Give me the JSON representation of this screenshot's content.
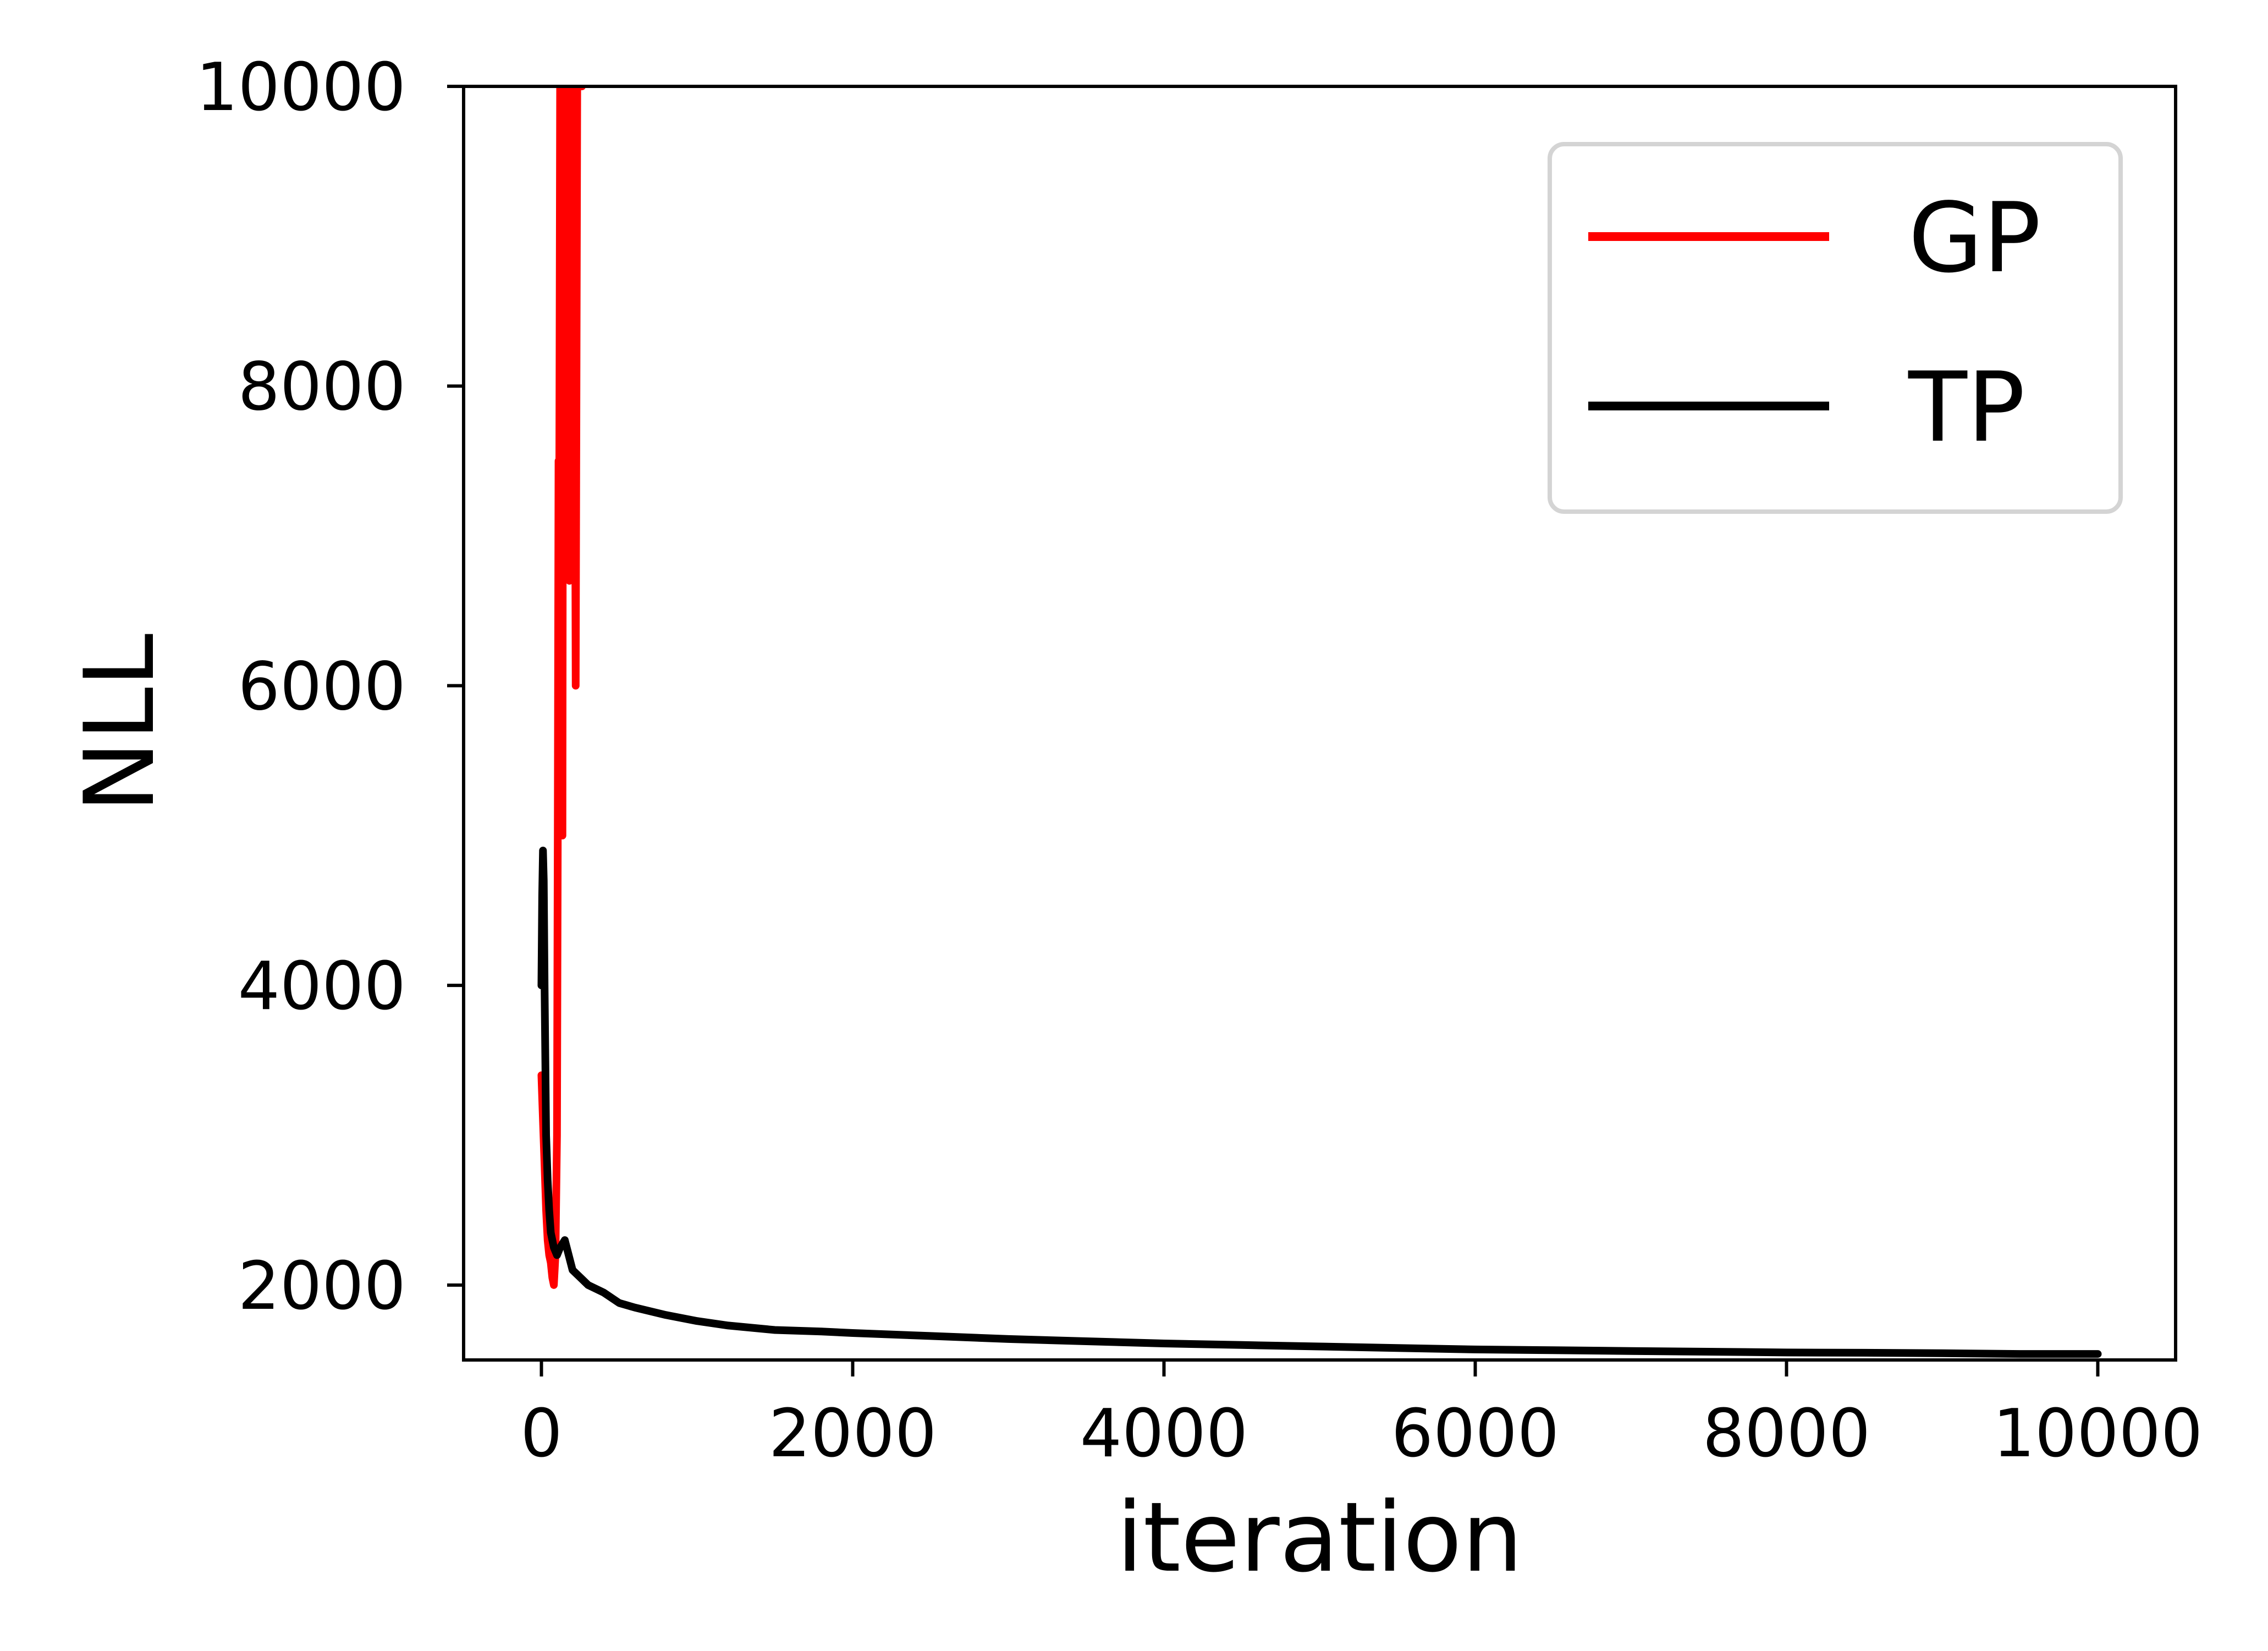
{
  "chart_data": {
    "type": "line",
    "title": "",
    "xlabel": "iteration",
    "ylabel": "NLL",
    "xlim": [
      -500,
      10500
    ],
    "ylim": [
      1500,
      10000
    ],
    "xticks": [
      0,
      2000,
      4000,
      6000,
      8000,
      10000
    ],
    "yticks": [
      2000,
      4000,
      6000,
      8000,
      10000
    ],
    "grid": false,
    "legend": {
      "position": "top-right",
      "entries": [
        "GP",
        "TP"
      ]
    },
    "series": [
      {
        "name": "GP",
        "color": "#ff0000",
        "x": [
          0,
          10,
          20,
          30,
          40,
          50,
          60,
          70,
          80,
          90,
          100,
          105,
          110,
          115,
          120,
          125,
          130,
          135,
          140,
          150,
          160,
          170,
          180,
          190,
          200,
          210,
          220,
          230,
          240,
          250,
          260
        ],
        "y": [
          3400,
          3100,
          2800,
          2500,
          2300,
          2200,
          2150,
          2050,
          2000,
          2200,
          3000,
          5000,
          7500,
          7400,
          10000,
          9800,
          7600,
          5000,
          10000,
          10000,
          9800,
          10000,
          6700,
          10000,
          9800,
          10000,
          6000,
          10000,
          10000,
          10000,
          10000
        ]
      },
      {
        "name": "TP",
        "color": "#000000",
        "x": [
          0,
          5,
          10,
          15,
          20,
          25,
          30,
          40,
          50,
          60,
          80,
          100,
          120,
          150,
          200,
          250,
          300,
          400,
          500,
          600,
          800,
          1000,
          1200,
          1500,
          1800,
          2000,
          2500,
          3000,
          3500,
          4000,
          4500,
          5000,
          5500,
          6000,
          6500,
          7000,
          7500,
          8000,
          8500,
          9000,
          9500,
          10000
        ],
        "y": [
          4000,
          4600,
          4900,
          4700,
          4000,
          3500,
          3000,
          2700,
          2500,
          2350,
          2250,
          2200,
          2250,
          2300,
          2100,
          2050,
          2000,
          1950,
          1880,
          1850,
          1800,
          1760,
          1730,
          1700,
          1690,
          1680,
          1660,
          1640,
          1625,
          1610,
          1600,
          1590,
          1580,
          1570,
          1565,
          1560,
          1555,
          1550,
          1548,
          1545,
          1540,
          1540
        ]
      }
    ]
  }
}
